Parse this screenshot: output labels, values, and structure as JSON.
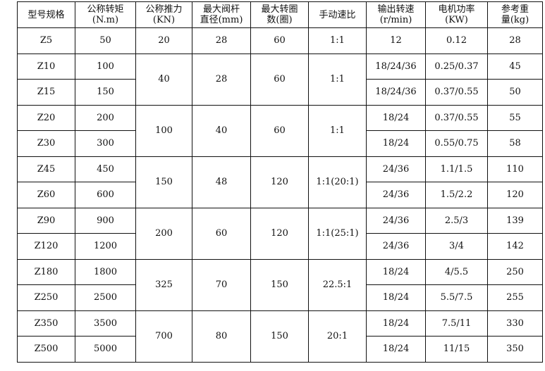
{
  "headers": [
    "型号规格",
    "公称转矩\n(N.m)",
    "公称推力\n(KN)",
    "最大阀杆\n直径(mm)",
    "最大转圈\n数(圈)",
    "手动速比",
    "输出转速\n(r/min)",
    "电机功率\n(KW)",
    "参考重\n量(kg)"
  ],
  "groups": [
    {
      "thrust": "20",
      "stem": "28",
      "turns": "60",
      "ratio": "1:1",
      "rows": [
        {
          "model": "Z5",
          "torque": "50",
          "speed": "12",
          "power": "0.12",
          "weight": "28"
        }
      ]
    },
    {
      "thrust": "40",
      "stem": "28",
      "turns": "60",
      "ratio": "1:1",
      "rows": [
        {
          "model": "Z10",
          "torque": "100",
          "speed": "18/24/36",
          "power": "0.25/0.37",
          "weight": "45"
        },
        {
          "model": "Z15",
          "torque": "150",
          "speed": "18/24/36",
          "power": "0.37/0.55",
          "weight": "50"
        }
      ]
    },
    {
      "thrust": "100",
      "stem": "40",
      "turns": "60",
      "ratio": "1:1",
      "rows": [
        {
          "model": "Z20",
          "torque": "200",
          "speed": "18/24",
          "power": "0.37/0.55",
          "weight": "55"
        },
        {
          "model": "Z30",
          "torque": "300",
          "speed": "18/24",
          "power": "0.55/0.75",
          "weight": "58"
        }
      ]
    },
    {
      "thrust": "150",
      "stem": "48",
      "turns": "120",
      "ratio": "1:1(20:1)",
      "rows": [
        {
          "model": "Z45",
          "torque": "450",
          "speed": "24/36",
          "power": "1.1/1.5",
          "weight": "110"
        },
        {
          "model": "Z60",
          "torque": "600",
          "speed": "24/36",
          "power": "1.5/2.2",
          "weight": "120"
        }
      ]
    },
    {
      "thrust": "200",
      "stem": "60",
      "turns": "120",
      "ratio": "1:1(25:1)",
      "rows": [
        {
          "model": "Z90",
          "torque": "900",
          "speed": "24/36",
          "power": "2.5/3",
          "weight": "139"
        },
        {
          "model": "Z120",
          "torque": "1200",
          "speed": "24/36",
          "power": "3/4",
          "weight": "142"
        }
      ]
    },
    {
      "thrust": "325",
      "stem": "70",
      "turns": "150",
      "ratio": "22.5:1",
      "rows": [
        {
          "model": "Z180",
          "torque": "1800",
          "speed": "18/24",
          "power": "4/5.5",
          "weight": "250"
        },
        {
          "model": "Z250",
          "torque": "2500",
          "speed": "18/24",
          "power": "5.5/7.5",
          "weight": "255"
        }
      ]
    },
    {
      "thrust": "700",
      "stem": "80",
      "turns": "150",
      "ratio": "20:1",
      "rows": [
        {
          "model": "Z350",
          "torque": "3500",
          "speed": "18/24",
          "power": "7.5/11",
          "weight": "330"
        },
        {
          "model": "Z500",
          "torque": "5000",
          "speed": "18/24",
          "power": "11/15",
          "weight": "350"
        }
      ]
    }
  ]
}
